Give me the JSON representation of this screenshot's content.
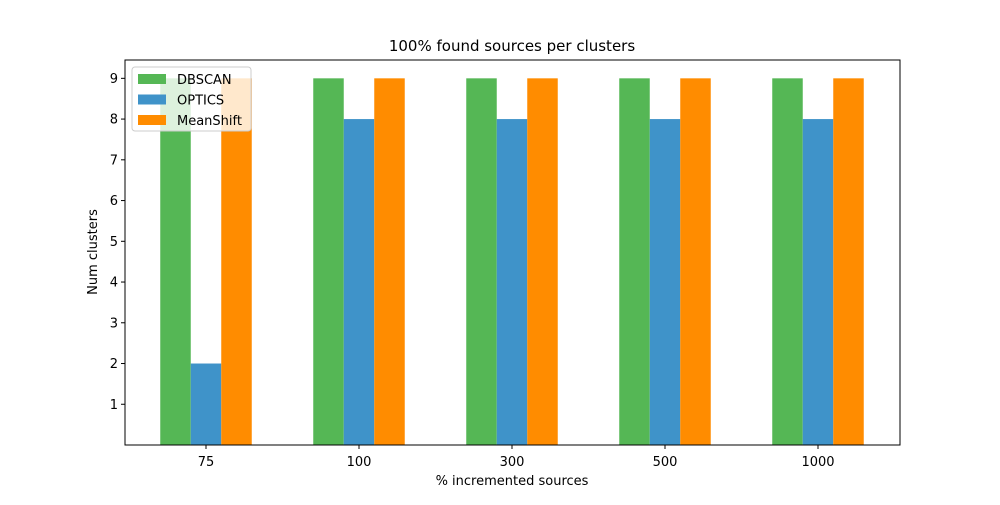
{
  "chart_data": {
    "type": "bar",
    "title": "100% found sources per clusters",
    "xlabel": "% incremented sources",
    "ylabel": "Num clusters",
    "categories": [
      "75",
      "100",
      "300",
      "500",
      "1000"
    ],
    "series": [
      {
        "name": "DBSCAN",
        "values": [
          9,
          9,
          9,
          9,
          9
        ],
        "color": "#55b755"
      },
      {
        "name": "OPTICS",
        "values": [
          2,
          8,
          8,
          8,
          8
        ],
        "color": "#3f93c9"
      },
      {
        "name": "MeanShift",
        "values": [
          9,
          9,
          9,
          9,
          9
        ],
        "color": "#ff8c00"
      }
    ],
    "ylim": [
      0,
      9.45
    ],
    "yticks": [
      1,
      2,
      3,
      4,
      5,
      6,
      7,
      8,
      9
    ],
    "grid": false,
    "legend_position": "top-left"
  }
}
